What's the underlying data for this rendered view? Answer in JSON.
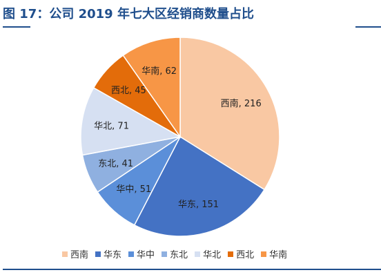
{
  "header": {
    "title": "图 17：公司 2019 年七大区经销商数量占比"
  },
  "chart_data": {
    "type": "pie",
    "title": "",
    "slices": [
      {
        "label": "西南",
        "value": 216,
        "color": "#f9c8a3"
      },
      {
        "label": "华东",
        "value": 151,
        "color": "#4472c4"
      },
      {
        "label": "华中",
        "value": 51,
        "color": "#5b8fd9"
      },
      {
        "label": "东北",
        "value": 41,
        "color": "#8fb0e0"
      },
      {
        "label": "华北",
        "value": 71,
        "color": "#d6e0f2"
      },
      {
        "label": "西北",
        "value": 45,
        "color": "#e36c0a"
      },
      {
        "label": "华南",
        "value": 62,
        "color": "#f79646"
      }
    ],
    "legend_position": "bottom"
  }
}
